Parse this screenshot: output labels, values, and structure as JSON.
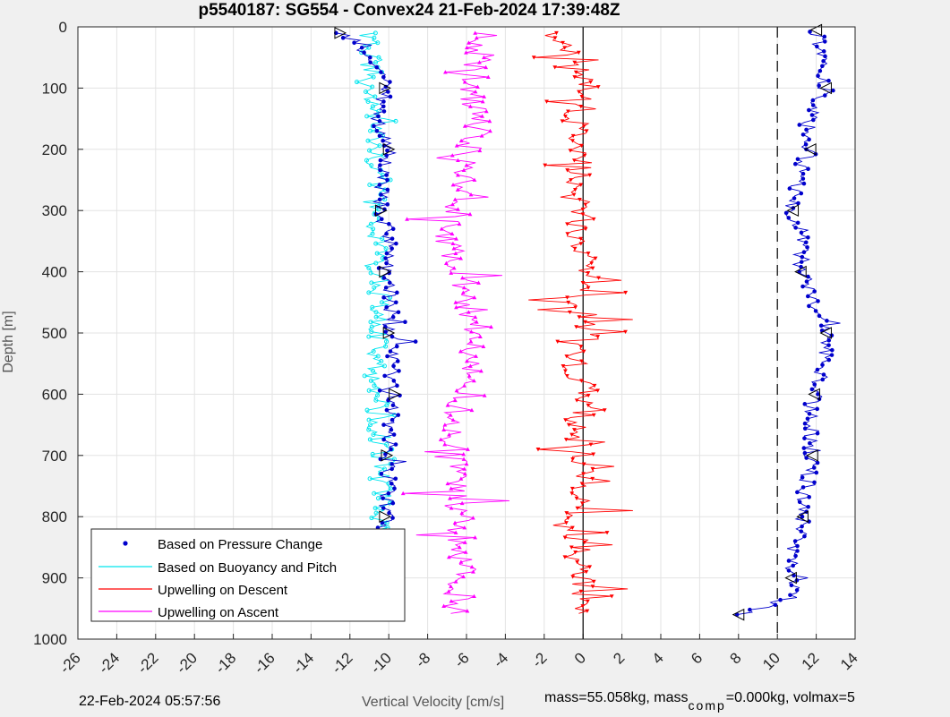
{
  "chart_data": {
    "type": "scatter",
    "title": "p5540187: SG554 - Convex24 21-Feb-2024 17:39:48Z",
    "xlabel": "Vertical Velocity [cm/s]",
    "ylabel": "Depth [m]",
    "xlim": [
      -26,
      14
    ],
    "ylim": [
      0,
      1000
    ],
    "y_reversed": true,
    "grid": true,
    "x_ticks": [
      "-26",
      "-24",
      "-22",
      "-20",
      "-18",
      "-16",
      "-14",
      "-12",
      "-10",
      "-8",
      "-6",
      "-4",
      "-2",
      "0",
      "2",
      "4",
      "6",
      "8",
      "10",
      "12",
      "14"
    ],
    "y_ticks": [
      "0",
      "100",
      "200",
      "300",
      "400",
      "500",
      "600",
      "700",
      "800",
      "900",
      "1000"
    ],
    "reference_lines": [
      {
        "x": 0,
        "style": "solid"
      },
      {
        "x": 10,
        "style": "dashed"
      }
    ],
    "legend_position": "bottom-left",
    "series": [
      {
        "name": "Based on Pressure Change",
        "color": "#0000cc",
        "marker": "dot",
        "descent_profile": [
          [
            10,
            -12.5
          ],
          [
            60,
            -10.5
          ],
          [
            100,
            -10.2
          ],
          [
            150,
            -10.6
          ],
          [
            200,
            -10.0
          ],
          [
            250,
            -10.3
          ],
          [
            300,
            -10.4
          ],
          [
            350,
            -10.0
          ],
          [
            400,
            -10.2
          ],
          [
            450,
            -9.8
          ],
          [
            500,
            -10.0
          ],
          [
            550,
            -9.9
          ],
          [
            600,
            -9.7
          ],
          [
            650,
            -9.9
          ],
          [
            700,
            -10.1
          ],
          [
            750,
            -10.0
          ],
          [
            800,
            -10.2
          ],
          [
            850,
            -10.1
          ],
          [
            900,
            -10.4
          ],
          [
            960,
            -10.3
          ]
        ],
        "ascent_profile": [
          [
            960,
            8.0
          ],
          [
            930,
            10.8
          ],
          [
            900,
            10.7
          ],
          [
            850,
            10.9
          ],
          [
            800,
            11.3
          ],
          [
            750,
            11.5
          ],
          [
            700,
            11.8
          ],
          [
            650,
            11.7
          ],
          [
            600,
            11.9
          ],
          [
            550,
            12.4
          ],
          [
            500,
            12.5
          ],
          [
            450,
            11.8
          ],
          [
            400,
            11.2
          ],
          [
            350,
            11.3
          ],
          [
            300,
            10.8
          ],
          [
            250,
            11.0
          ],
          [
            200,
            11.7
          ],
          [
            150,
            11.8
          ],
          [
            100,
            12.5
          ],
          [
            50,
            12.2
          ],
          [
            5,
            12.0
          ]
        ]
      },
      {
        "name": "Based on Buoyancy and Pitch",
        "color": "#00e5ee",
        "marker": "open-circle",
        "descent_profile": [
          [
            10,
            -11
          ],
          [
            60,
            -10.9
          ],
          [
            100,
            -10.7
          ],
          [
            150,
            -10.8
          ],
          [
            200,
            -10.9
          ],
          [
            250,
            -10.6
          ],
          [
            300,
            -10.8
          ],
          [
            350,
            -10.7
          ],
          [
            400,
            -10.6
          ],
          [
            450,
            -10.5
          ],
          [
            500,
            -10.6
          ],
          [
            550,
            -10.8
          ],
          [
            600,
            -10.5
          ],
          [
            650,
            -10.6
          ],
          [
            700,
            -10.3
          ],
          [
            750,
            -10.4
          ],
          [
            800,
            -10.5
          ],
          [
            850,
            -10.3
          ],
          [
            900,
            -10.5
          ],
          [
            960,
            -10.2
          ]
        ]
      },
      {
        "name": "Upwelling on Descent",
        "color": "#ff0000",
        "marker": "triangle-down",
        "profile": [
          [
            10,
            -2
          ],
          [
            60,
            0.2
          ],
          [
            100,
            0.1
          ],
          [
            150,
            -0.5
          ],
          [
            200,
            0.0
          ],
          [
            250,
            -0.3
          ],
          [
            300,
            0.0
          ],
          [
            350,
            -0.4
          ],
          [
            400,
            0.3
          ],
          [
            450,
            -0.2
          ],
          [
            500,
            0.4
          ],
          [
            550,
            -0.5
          ],
          [
            600,
            0.2
          ],
          [
            650,
            -0.3
          ],
          [
            700,
            -0.1
          ],
          [
            750,
            -0.2
          ],
          [
            800,
            -0.3
          ],
          [
            850,
            -0.2
          ],
          [
            900,
            -0.1
          ],
          [
            960,
            0.0
          ]
        ]
      },
      {
        "name": "Upwelling on Ascent",
        "color": "#ff00ff",
        "marker": "triangle-up",
        "profile": [
          [
            10,
            -5
          ],
          [
            60,
            -5.5
          ],
          [
            100,
            -5.7
          ],
          [
            150,
            -5.4
          ],
          [
            200,
            -6.0
          ],
          [
            250,
            -6.3
          ],
          [
            300,
            -6.5
          ],
          [
            350,
            -6.9
          ],
          [
            400,
            -6.7
          ],
          [
            450,
            -5.8
          ],
          [
            500,
            -5.4
          ],
          [
            550,
            -5.8
          ],
          [
            600,
            -6.4
          ],
          [
            650,
            -6.8
          ],
          [
            700,
            -6.7
          ],
          [
            750,
            -6.4
          ],
          [
            800,
            -6.3
          ],
          [
            850,
            -6.2
          ],
          [
            900,
            -6.3
          ],
          [
            960,
            -6.5
          ]
        ]
      }
    ]
  },
  "footer": {
    "date": "22-Feb-2024 05:57:56",
    "mass": "mass=55.058kg, mass",
    "comp_sub": "comp",
    "comp_tail": "=0.000kg, volmax=5"
  },
  "colors": {
    "pressure": "#0000cc",
    "buoyancy": "#00e5ee",
    "upwelling_descent": "#ff0000",
    "upwelling_ascent": "#ff00ff",
    "background": "#f0f0f0",
    "plot_area": "#ffffff"
  }
}
